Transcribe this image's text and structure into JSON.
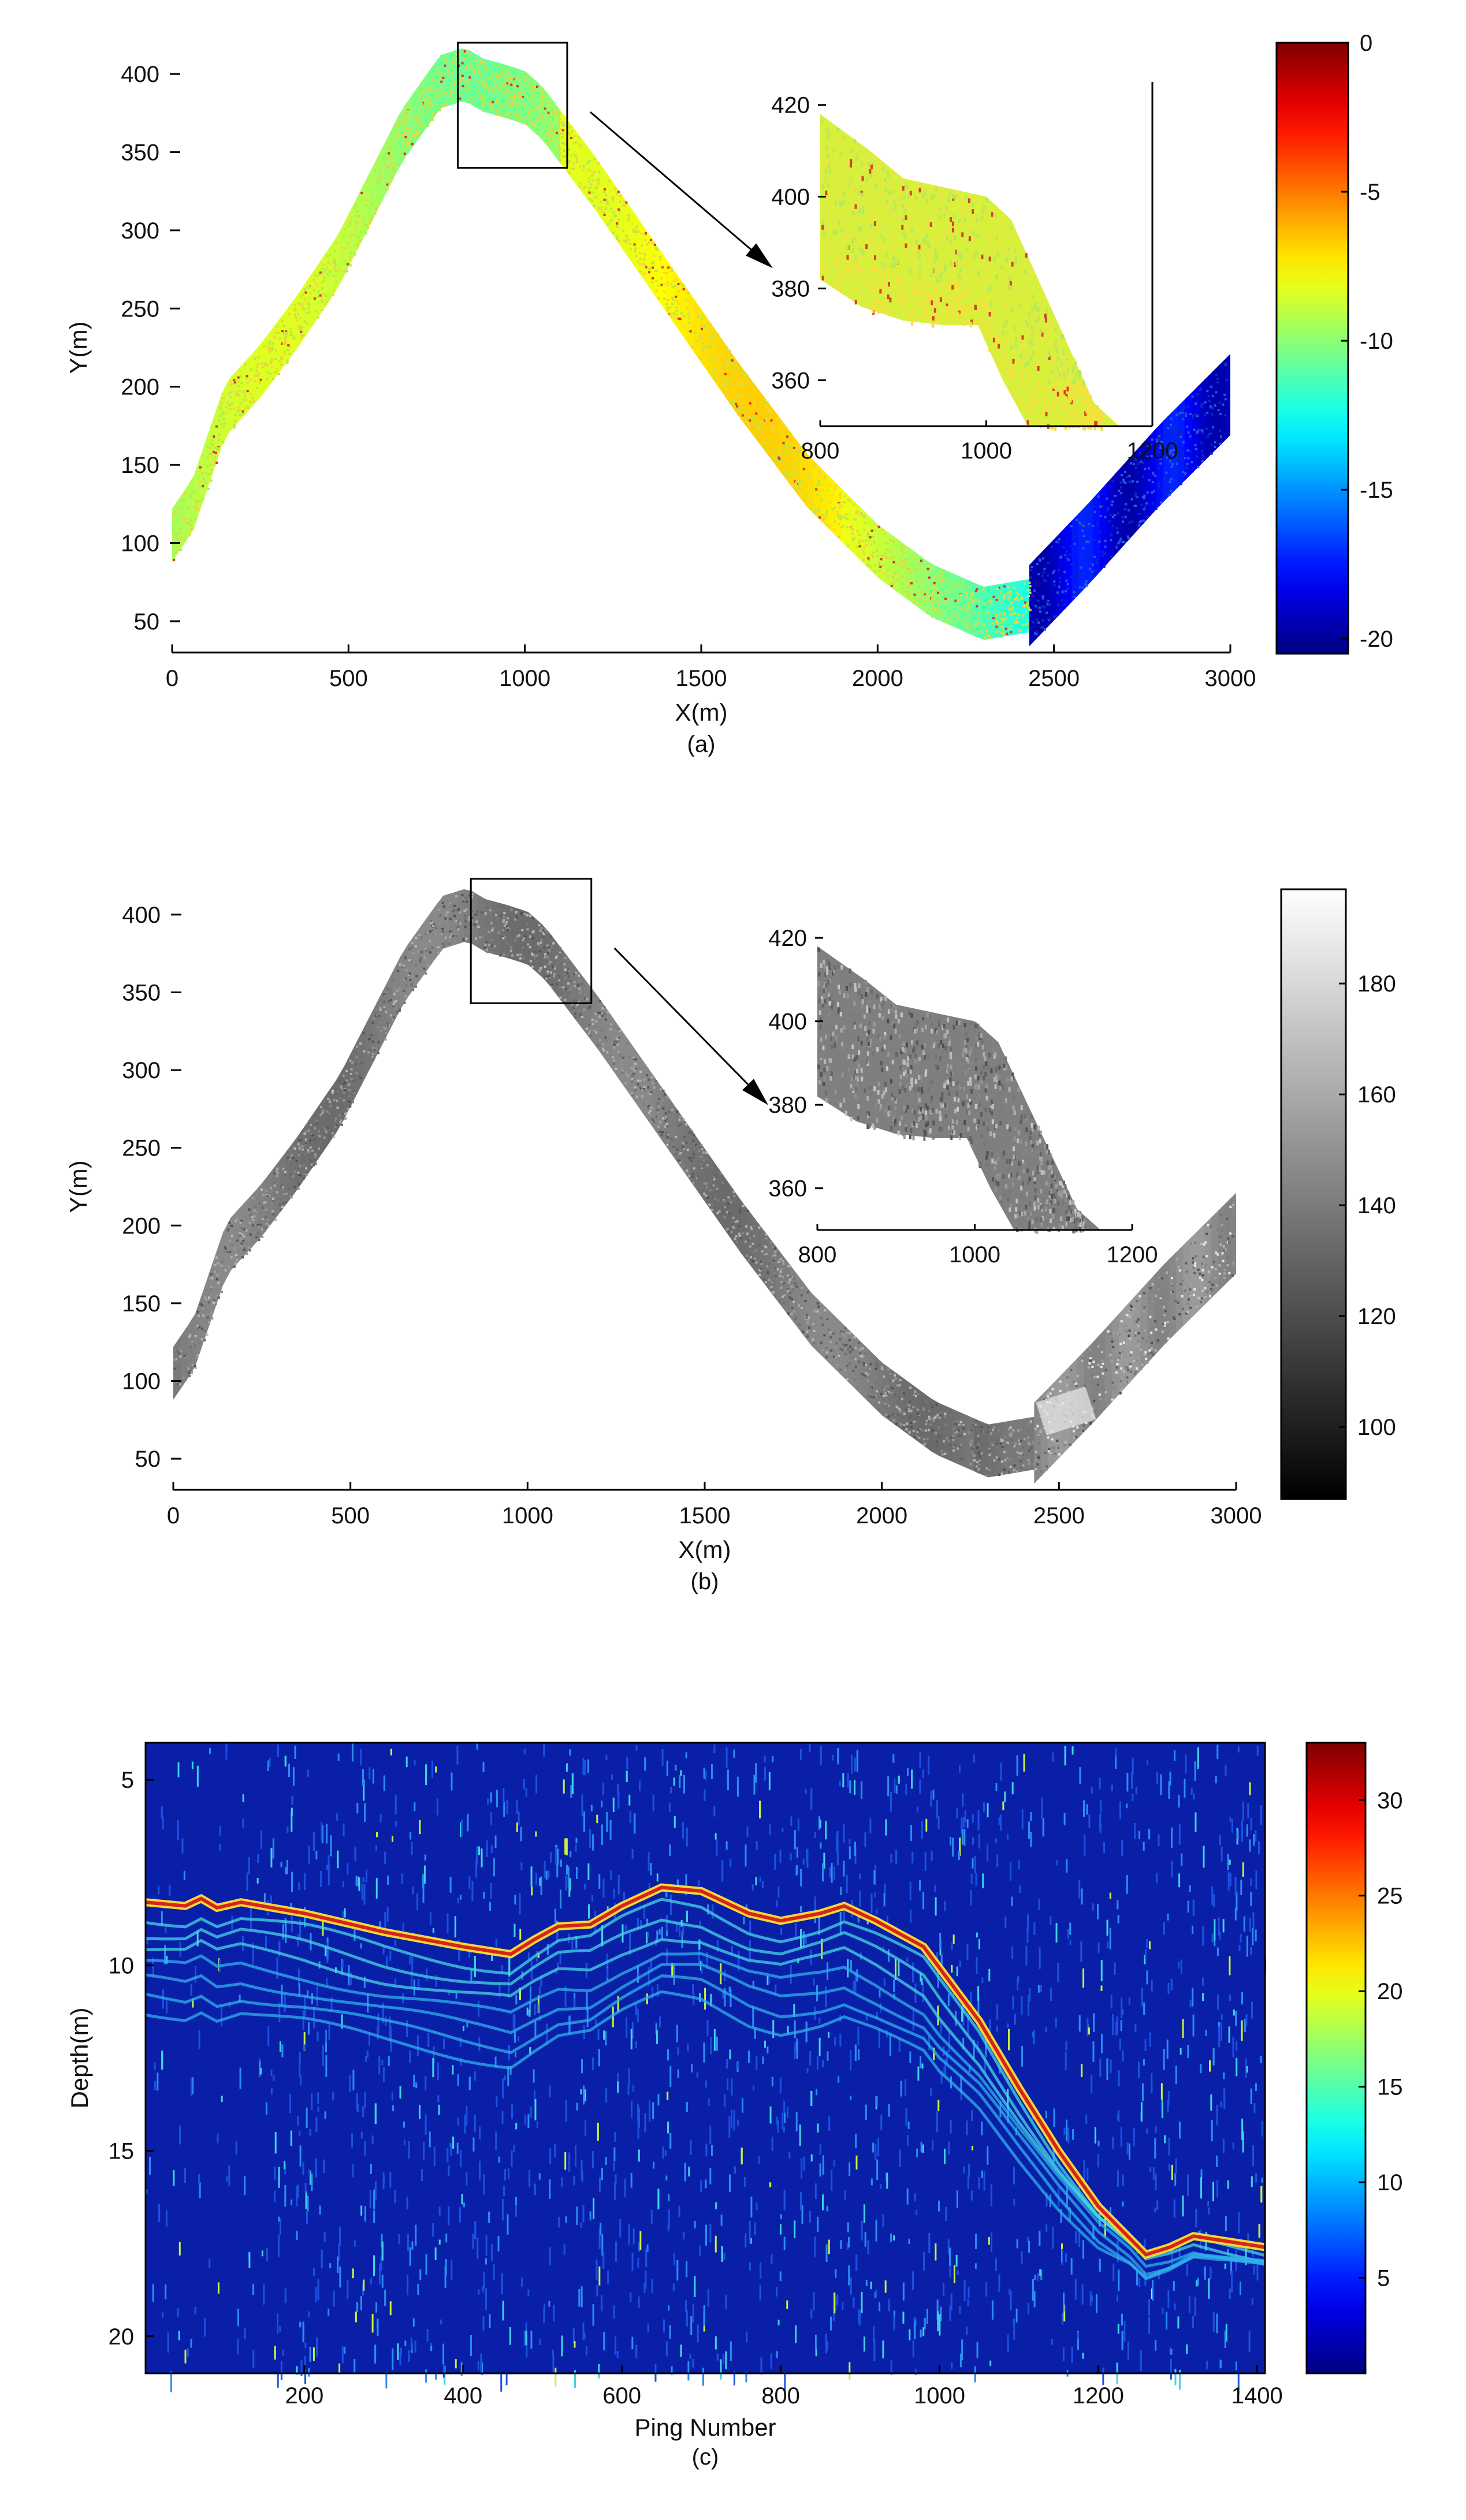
{
  "chart_data": [
    {
      "type": "scatter",
      "panel_label": "(a)",
      "xlabel": "X(m)",
      "ylabel": "Y(m)",
      "xlim": [
        0,
        3000
      ],
      "ylim": [
        30,
        420
      ],
      "xticks": [
        0,
        500,
        1000,
        1500,
        2000,
        2500,
        3000
      ],
      "yticks": [
        50,
        100,
        150,
        200,
        250,
        300,
        350,
        400
      ],
      "track_center": {
        "x": [
          0,
          60,
          150,
          250,
          350,
          470,
          560,
          650,
          760,
          830,
          880,
          930,
          1000,
          1050,
          1200,
          1400,
          1600,
          1800,
          2000,
          2150,
          2300,
          2430
        ],
        "y": [
          105,
          125,
          185,
          210,
          240,
          280,
          320,
          360,
          395,
          400,
          393,
          390,
          385,
          375,
          330,
          265,
          200,
          140,
          95,
          70,
          55,
          60
        ]
      },
      "track_east": {
        "x": [
          2430,
          2600,
          2800,
          3000
        ],
        "y": [
          60,
          100,
          150,
          195
        ]
      },
      "colorbar": {
        "label_ticks": [
          0,
          -5,
          -10,
          -15,
          -20
        ],
        "range": [
          -20.5,
          0
        ],
        "colormap": "jet"
      },
      "inset": {
        "xlim": [
          800,
          1200
        ],
        "ylim": [
          350,
          425
        ],
        "xticks": [
          800,
          1000,
          1200
        ],
        "yticks": [
          360,
          380,
          400,
          420
        ]
      },
      "zoom_box": {
        "x": [
          810,
          1120
        ],
        "y": [
          340,
          420
        ]
      }
    },
    {
      "type": "scatter",
      "panel_label": "(b)",
      "xlabel": "X(m)",
      "ylabel": "Y(m)",
      "xlim": [
        0,
        3000
      ],
      "ylim": [
        30,
        420
      ],
      "xticks": [
        0,
        500,
        1000,
        1500,
        2000,
        2500,
        3000
      ],
      "yticks": [
        50,
        100,
        150,
        200,
        250,
        300,
        350,
        400
      ],
      "colorbar": {
        "label_ticks": [
          100,
          120,
          140,
          160,
          180
        ],
        "range": [
          87,
          197
        ],
        "colormap": "gray"
      },
      "inset": {
        "xlim": [
          800,
          1200
        ],
        "ylim": [
          350,
          425
        ],
        "xticks": [
          800,
          1000,
          1200
        ],
        "yticks": [
          360,
          380,
          400,
          420
        ]
      },
      "zoom_box": {
        "x": [
          840,
          1180
        ],
        "y": [
          343,
          423
        ]
      }
    },
    {
      "type": "heatmap",
      "panel_label": "(c)",
      "xlabel": "Ping Number",
      "ylabel": "Depth(m)",
      "xlim": [
        0,
        1410
      ],
      "ylim": [
        4,
        21
      ],
      "xticks": [
        200,
        400,
        600,
        800,
        1000,
        1200,
        1400
      ],
      "yticks": [
        5,
        10,
        15,
        20
      ],
      "seabed": {
        "ping": [
          0,
          50,
          70,
          90,
          100,
          120,
          200,
          300,
          400,
          460,
          490,
          520,
          560,
          600,
          650,
          700,
          760,
          800,
          850,
          880,
          920,
          980,
          1050,
          1100,
          1150,
          1200,
          1260,
          1290,
          1320,
          1350,
          1380,
          1410
        ],
        "depth": [
          8.3,
          8.4,
          8.2,
          8.45,
          8.4,
          8.3,
          8.6,
          9.1,
          9.5,
          9.7,
          9.3,
          8.95,
          8.9,
          8.4,
          7.9,
          8.0,
          8.6,
          8.8,
          8.6,
          8.4,
          8.8,
          9.5,
          11.5,
          13.3,
          15.0,
          16.5,
          17.8,
          17.6,
          17.3,
          17.4,
          17.5,
          17.6
        ]
      },
      "colorbar": {
        "label_ticks": [
          5,
          10,
          15,
          20,
          25,
          30
        ],
        "range": [
          0,
          33
        ],
        "colormap": "jet"
      }
    }
  ]
}
